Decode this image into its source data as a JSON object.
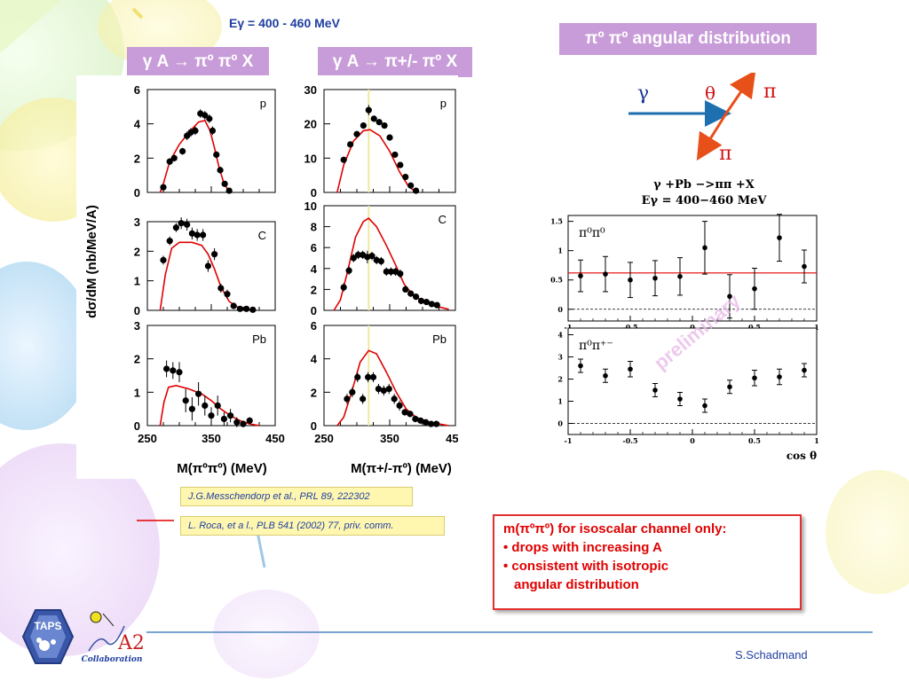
{
  "header": {
    "energy_range": "Eγ = 400 - 460 MeV",
    "panel1_label": "γ  A → πº πº X",
    "panel2_label": "γ  A → π+/- πº X",
    "angular_label": "πº πº angular distribution"
  },
  "kinematics": {
    "gamma": "γ",
    "theta": "θ",
    "pi_top": "π",
    "pi_bottom": "π"
  },
  "angular_plot": {
    "title_line1": "γ +Pb −>ππ +X",
    "title_line2": "Eγ = 400−460 MeV",
    "xlabel": "cos θ",
    "watermark": "preliminary"
  },
  "axes": {
    "ylabel": "dσ/dM (nb/MeV/A)",
    "xlabel_left": "M(πºπº) (MeV)",
    "xlabel_right": "M(π+/-πº) (MeV)"
  },
  "references": {
    "ref1": "J.G.Messchendorp et al., PRL 89, 222302",
    "ref2": "L. Roca, et a l.,  PLB 541 (2002) 77, priv. comm."
  },
  "conclusion": {
    "line1": "m(πºπº) for isoscalar channel only:",
    "line2": "• drops with increasing A",
    "line3": "• consistent with isotropic",
    "line4": "angular distribution"
  },
  "footer": {
    "author": "S.Schadmand",
    "logo_taps": "TAPS",
    "logo_a2": "A2",
    "logo_collab": "Collaboration"
  },
  "colors": {
    "label_bg": "#c89cd8",
    "theory_curve": "#e00000",
    "beam_arrow": "#1e6fb0",
    "pion_arrow": "#e8501a",
    "data_points": "#000000",
    "text_blue": "#1f3fa0"
  },
  "chart_data": [
    {
      "type": "scatter",
      "panel": "pi0pi0 p",
      "label": "p",
      "xlim": [
        250,
        450
      ],
      "ylim": [
        0,
        6
      ],
      "yticks": [
        "0",
        "2",
        "4",
        "6"
      ],
      "points": [
        {
          "x": 275,
          "y": 0.3,
          "e": 0.15
        },
        {
          "x": 285,
          "y": 1.8,
          "e": 0.2
        },
        {
          "x": 292,
          "y": 2.0,
          "e": 0.2
        },
        {
          "x": 305,
          "y": 2.4,
          "e": 0.2
        },
        {
          "x": 312,
          "y": 3.3,
          "e": 0.25
        },
        {
          "x": 318,
          "y": 3.5,
          "e": 0.25
        },
        {
          "x": 325,
          "y": 3.6,
          "e": 0.25
        },
        {
          "x": 333,
          "y": 4.6,
          "e": 0.25
        },
        {
          "x": 340,
          "y": 4.5,
          "e": 0.25
        },
        {
          "x": 347,
          "y": 4.3,
          "e": 0.25
        },
        {
          "x": 352,
          "y": 3.6,
          "e": 0.25
        },
        {
          "x": 358,
          "y": 2.2,
          "e": 0.2
        },
        {
          "x": 364,
          "y": 1.3,
          "e": 0.2
        },
        {
          "x": 371,
          "y": 0.5,
          "e": 0.15
        },
        {
          "x": 378,
          "y": 0.1,
          "e": 0.1
        }
      ],
      "theory": [
        [
          270,
          0
        ],
        [
          275,
          0.5
        ],
        [
          285,
          1.8
        ],
        [
          300,
          2.8
        ],
        [
          315,
          3.5
        ],
        [
          330,
          4.1
        ],
        [
          340,
          4.2
        ],
        [
          348,
          3.6
        ],
        [
          355,
          2.6
        ],
        [
          362,
          1.5
        ],
        [
          370,
          0.5
        ],
        [
          378,
          0.05
        ],
        [
          382,
          0
        ]
      ]
    },
    {
      "type": "scatter",
      "panel": "pi+-pi0 p",
      "label": "p",
      "xlim": [
        250,
        450
      ],
      "ylim": [
        0,
        30
      ],
      "yticks": [
        "0",
        "10",
        "20",
        "30"
      ],
      "points": [
        {
          "x": 280,
          "y": 9.5,
          "e": 0.7
        },
        {
          "x": 290,
          "y": 14,
          "e": 0.7
        },
        {
          "x": 300,
          "y": 17,
          "e": 0.8
        },
        {
          "x": 310,
          "y": 19.5,
          "e": 0.8
        },
        {
          "x": 318,
          "y": 24,
          "e": 1.5
        },
        {
          "x": 326,
          "y": 21.5,
          "e": 0.8
        },
        {
          "x": 334,
          "y": 20.5,
          "e": 0.8
        },
        {
          "x": 342,
          "y": 19.5,
          "e": 0.8
        },
        {
          "x": 350,
          "y": 16,
          "e": 0.8
        },
        {
          "x": 358,
          "y": 11,
          "e": 0.7
        },
        {
          "x": 366,
          "y": 8,
          "e": 0.6
        },
        {
          "x": 374,
          "y": 4.5,
          "e": 0.5
        },
        {
          "x": 382,
          "y": 2,
          "e": 0.4
        },
        {
          "x": 390,
          "y": 0.5,
          "e": 0.3
        }
      ],
      "theory": [
        [
          270,
          0
        ],
        [
          280,
          8
        ],
        [
          295,
          15
        ],
        [
          310,
          18
        ],
        [
          320,
          18.3
        ],
        [
          335,
          16.5
        ],
        [
          350,
          12
        ],
        [
          365,
          6
        ],
        [
          378,
          2
        ],
        [
          390,
          0
        ]
      ]
    },
    {
      "type": "scatter",
      "panel": "pi0pi0 C",
      "label": "C",
      "xlim": [
        250,
        450
      ],
      "ylim": [
        0,
        3
      ],
      "yticks": [
        "0",
        "1",
        "2",
        "3"
      ],
      "points": [
        {
          "x": 275,
          "y": 1.7,
          "e": 0.15
        },
        {
          "x": 285,
          "y": 2.35,
          "e": 0.15
        },
        {
          "x": 295,
          "y": 2.8,
          "e": 0.15
        },
        {
          "x": 303,
          "y": 2.95,
          "e": 0.2
        },
        {
          "x": 312,
          "y": 2.9,
          "e": 0.2
        },
        {
          "x": 320,
          "y": 2.6,
          "e": 0.2
        },
        {
          "x": 328,
          "y": 2.55,
          "e": 0.2
        },
        {
          "x": 337,
          "y": 2.55,
          "e": 0.2
        },
        {
          "x": 345,
          "y": 1.5,
          "e": 0.2
        },
        {
          "x": 355,
          "y": 1.9,
          "e": 0.2
        },
        {
          "x": 365,
          "y": 0.75,
          "e": 0.15
        },
        {
          "x": 375,
          "y": 0.55,
          "e": 0.15
        },
        {
          "x": 385,
          "y": 0.15,
          "e": 0.1
        },
        {
          "x": 395,
          "y": 0.05,
          "e": 0.05
        },
        {
          "x": 405,
          "y": 0.05,
          "e": 0.05
        },
        {
          "x": 415,
          "y": 0.02,
          "e": 0.03
        }
      ],
      "theory": [
        [
          270,
          0
        ],
        [
          278,
          1.2
        ],
        [
          288,
          2.1
        ],
        [
          300,
          2.3
        ],
        [
          320,
          2.3
        ],
        [
          335,
          2.2
        ],
        [
          345,
          1.9
        ],
        [
          355,
          1.4
        ],
        [
          365,
          0.8
        ],
        [
          378,
          0.3
        ],
        [
          395,
          0.05
        ],
        [
          420,
          0
        ]
      ]
    },
    {
      "type": "scatter",
      "panel": "pi+-pi0 C",
      "label": "C",
      "xlim": [
        250,
        450
      ],
      "ylim": [
        0,
        10
      ],
      "yticks": [
        "0",
        "2",
        "4",
        "6",
        "8",
        "10"
      ],
      "points": [
        {
          "x": 280,
          "y": 2.2,
          "e": 0.4
        },
        {
          "x": 288,
          "y": 3.8,
          "e": 0.4
        },
        {
          "x": 295,
          "y": 5.0,
          "e": 0.4
        },
        {
          "x": 302,
          "y": 5.3,
          "e": 0.4
        },
        {
          "x": 309,
          "y": 5.3,
          "e": 0.4
        },
        {
          "x": 316,
          "y": 5.1,
          "e": 0.6
        },
        {
          "x": 323,
          "y": 5.2,
          "e": 0.4
        },
        {
          "x": 330,
          "y": 4.8,
          "e": 0.4
        },
        {
          "x": 337,
          "y": 4.7,
          "e": 0.4
        },
        {
          "x": 345,
          "y": 3.7,
          "e": 0.4
        },
        {
          "x": 352,
          "y": 3.7,
          "e": 0.4
        },
        {
          "x": 359,
          "y": 3.7,
          "e": 0.4
        },
        {
          "x": 366,
          "y": 3.5,
          "e": 0.4
        },
        {
          "x": 374,
          "y": 2.0,
          "e": 0.3
        },
        {
          "x": 382,
          "y": 1.6,
          "e": 0.3
        },
        {
          "x": 390,
          "y": 1.3,
          "e": 0.3
        },
        {
          "x": 398,
          "y": 0.9,
          "e": 0.2
        },
        {
          "x": 406,
          "y": 0.8,
          "e": 0.2
        },
        {
          "x": 414,
          "y": 0.6,
          "e": 0.2
        },
        {
          "x": 422,
          "y": 0.5,
          "e": 0.2
        }
      ],
      "theory": [
        [
          265,
          0
        ],
        [
          275,
          1
        ],
        [
          285,
          3.5
        ],
        [
          298,
          7
        ],
        [
          310,
          8.5
        ],
        [
          318,
          8.8
        ],
        [
          330,
          8
        ],
        [
          345,
          6.2
        ],
        [
          360,
          4.2
        ],
        [
          372,
          2.5
        ],
        [
          385,
          1.5
        ],
        [
          400,
          0.9
        ],
        [
          420,
          0.4
        ],
        [
          440,
          0.1
        ]
      ]
    },
    {
      "type": "scatter",
      "panel": "pi0pi0 Pb",
      "label": "Pb",
      "xlim": [
        250,
        450
      ],
      "ylim": [
        0,
        3
      ],
      "yticks": [
        "0",
        "1",
        "2",
        "3"
      ],
      "points": [
        {
          "x": 280,
          "y": 1.7,
          "e": 0.25
        },
        {
          "x": 290,
          "y": 1.65,
          "e": 0.25
        },
        {
          "x": 300,
          "y": 1.6,
          "e": 0.3
        },
        {
          "x": 310,
          "y": 0.75,
          "e": 0.35
        },
        {
          "x": 320,
          "y": 0.5,
          "e": 0.35
        },
        {
          "x": 330,
          "y": 0.95,
          "e": 0.35
        },
        {
          "x": 340,
          "y": 0.6,
          "e": 0.3
        },
        {
          "x": 350,
          "y": 0.3,
          "e": 0.25
        },
        {
          "x": 360,
          "y": 0.6,
          "e": 0.3
        },
        {
          "x": 370,
          "y": 0.2,
          "e": 0.2
        },
        {
          "x": 380,
          "y": 0.3,
          "e": 0.2
        },
        {
          "x": 390,
          "y": 0.1,
          "e": 0.15
        },
        {
          "x": 400,
          "y": 0.05,
          "e": 0.1
        },
        {
          "x": 410,
          "y": 0.15,
          "e": 0.1
        }
      ],
      "theory": [
        [
          270,
          0
        ],
        [
          276,
          0.7
        ],
        [
          283,
          1.15
        ],
        [
          295,
          1.2
        ],
        [
          315,
          1.1
        ],
        [
          335,
          0.95
        ],
        [
          350,
          0.75
        ],
        [
          365,
          0.5
        ],
        [
          380,
          0.3
        ],
        [
          395,
          0.15
        ],
        [
          410,
          0.05
        ],
        [
          425,
          0
        ]
      ]
    },
    {
      "type": "scatter",
      "panel": "pi+-pi0 Pb",
      "label": "Pb",
      "xlim": [
        250,
        450
      ],
      "ylim": [
        0,
        6
      ],
      "yticks": [
        "0",
        "2",
        "4",
        "6"
      ],
      "points": [
        {
          "x": 285,
          "y": 1.6,
          "e": 0.3
        },
        {
          "x": 293,
          "y": 2.0,
          "e": 0.3
        },
        {
          "x": 301,
          "y": 2.9,
          "e": 0.3
        },
        {
          "x": 309,
          "y": 1.6,
          "e": 0.3
        },
        {
          "x": 317,
          "y": 2.9,
          "e": 0.3
        },
        {
          "x": 325,
          "y": 2.9,
          "e": 0.3
        },
        {
          "x": 333,
          "y": 2.2,
          "e": 0.3
        },
        {
          "x": 341,
          "y": 2.1,
          "e": 0.3
        },
        {
          "x": 349,
          "y": 2.2,
          "e": 0.3
        },
        {
          "x": 357,
          "y": 1.6,
          "e": 0.3
        },
        {
          "x": 365,
          "y": 1.2,
          "e": 0.3
        },
        {
          "x": 373,
          "y": 0.8,
          "e": 0.2
        },
        {
          "x": 381,
          "y": 0.7,
          "e": 0.2
        },
        {
          "x": 389,
          "y": 0.4,
          "e": 0.2
        },
        {
          "x": 397,
          "y": 0.3,
          "e": 0.15
        },
        {
          "x": 405,
          "y": 0.2,
          "e": 0.15
        },
        {
          "x": 413,
          "y": 0.1,
          "e": 0.1
        },
        {
          "x": 421,
          "y": 0.1,
          "e": 0.1
        }
      ],
      "theory": [
        [
          270,
          0
        ],
        [
          280,
          0.5
        ],
        [
          292,
          2
        ],
        [
          305,
          3.8
        ],
        [
          318,
          4.5
        ],
        [
          330,
          4.3
        ],
        [
          345,
          3.2
        ],
        [
          360,
          2.0
        ],
        [
          375,
          1.0
        ],
        [
          390,
          0.5
        ],
        [
          410,
          0.2
        ],
        [
          440,
          0
        ]
      ]
    },
    {
      "type": "scatter",
      "panel": "angular pi0pi0",
      "label": "π⁰π⁰",
      "xlim": [
        -1,
        1
      ],
      "ylim": [
        -0.2,
        1.6
      ],
      "xticks": [
        "-1",
        "-0.5",
        "0",
        "0.5",
        "1"
      ],
      "yticks": [
        "0",
        "0.5",
        "1",
        "1.5"
      ],
      "reference_line": 0.62,
      "points": [
        {
          "x": -0.9,
          "y": 0.57,
          "e": 0.27
        },
        {
          "x": -0.7,
          "y": 0.6,
          "e": 0.3
        },
        {
          "x": -0.5,
          "y": 0.5,
          "e": 0.3
        },
        {
          "x": -0.3,
          "y": 0.53,
          "e": 0.3
        },
        {
          "x": -0.1,
          "y": 0.56,
          "e": 0.32
        },
        {
          "x": 0.1,
          "y": 1.05,
          "e": 0.45
        },
        {
          "x": 0.3,
          "y": 0.22,
          "e": 0.37
        },
        {
          "x": 0.5,
          "y": 0.35,
          "e": 0.35
        },
        {
          "x": 0.7,
          "y": 1.22,
          "e": 0.4
        },
        {
          "x": 0.9,
          "y": 0.73,
          "e": 0.28
        }
      ]
    },
    {
      "type": "scatter",
      "panel": "angular pi0pi+-",
      "label": "π⁰π⁺⁻",
      "xlim": [
        -1,
        1
      ],
      "ylim": [
        -0.5,
        4.3
      ],
      "xticks": [
        "-1",
        "-0.5",
        "0",
        "0.5",
        "1"
      ],
      "yticks": [
        "0",
        "1",
        "2",
        "3",
        "4"
      ],
      "points": [
        {
          "x": -0.9,
          "y": 2.6,
          "e": 0.3
        },
        {
          "x": -0.7,
          "y": 2.15,
          "e": 0.3
        },
        {
          "x": -0.5,
          "y": 2.45,
          "e": 0.35
        },
        {
          "x": -0.3,
          "y": 1.5,
          "e": 0.3
        },
        {
          "x": -0.1,
          "y": 1.1,
          "e": 0.3
        },
        {
          "x": 0.1,
          "y": 0.8,
          "e": 0.3
        },
        {
          "x": 0.3,
          "y": 1.65,
          "e": 0.3
        },
        {
          "x": 0.5,
          "y": 2.05,
          "e": 0.35
        },
        {
          "x": 0.7,
          "y": 2.1,
          "e": 0.35
        },
        {
          "x": 0.9,
          "y": 2.4,
          "e": 0.3
        }
      ]
    }
  ]
}
